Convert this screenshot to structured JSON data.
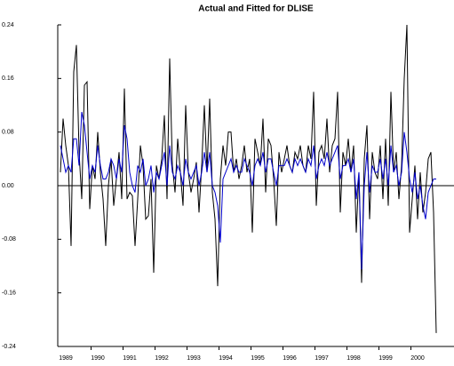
{
  "chart_data": {
    "type": "line",
    "title": "Actual and Fitted for DLISE",
    "categories": [
      null,
      null,
      "1989",
      null,
      null,
      null,
      null,
      null,
      null,
      null,
      null,
      null,
      null,
      null,
      "1990",
      null,
      null,
      null,
      null,
      null,
      null,
      null,
      null,
      null,
      null,
      null,
      "1991",
      null,
      null,
      null,
      null,
      null,
      null,
      null,
      null,
      null,
      null,
      null,
      "1992",
      null,
      null,
      null,
      null,
      null,
      null,
      null,
      null,
      null,
      null,
      null,
      "1993",
      null,
      null,
      null,
      null,
      null,
      null,
      null,
      null,
      null,
      null,
      null,
      "1994",
      null,
      null,
      null,
      null,
      null,
      null,
      null,
      null,
      null,
      null,
      null,
      "1995",
      null,
      null,
      null,
      null,
      null,
      null,
      null,
      null,
      null,
      null,
      null,
      "1996",
      null,
      null,
      null,
      null,
      null,
      null,
      null,
      null,
      null,
      null,
      null,
      "1997",
      null,
      null,
      null,
      null,
      null,
      null,
      null,
      null,
      null,
      null,
      null,
      "1998",
      null,
      null,
      null,
      null,
      null,
      null,
      null,
      null,
      null,
      null,
      null,
      "1999",
      null,
      null,
      null,
      null,
      null,
      null,
      null,
      null,
      null,
      null,
      null,
      "2000",
      null,
      null,
      null,
      null,
      null,
      null,
      null
    ],
    "series": [
      {
        "color": "#000000",
        "values": [
          0.02,
          0.1,
          0.06,
          0.03,
          -0.09,
          0.17,
          0.21,
          0.05,
          -0.02,
          0.15,
          0.155,
          -0.035,
          0.03,
          0.01,
          0.08,
          0.02,
          -0.02,
          -0.09,
          0.0,
          0.04,
          -0.03,
          0.01,
          0.05,
          -0.02,
          0.145,
          -0.02,
          -0.01,
          -0.015,
          -0.09,
          -0.02,
          0.06,
          0.03,
          -0.05,
          -0.045,
          0.01,
          -0.13,
          0.03,
          0.01,
          0.04,
          0.105,
          -0.02,
          0.19,
          0.03,
          -0.01,
          0.07,
          0.02,
          -0.03,
          0.12,
          0.02,
          -0.01,
          0.01,
          0.035,
          -0.04,
          0.03,
          0.12,
          0.02,
          0.13,
          -0.01,
          -0.05,
          -0.15,
          0.01,
          0.06,
          0.03,
          0.08,
          0.08,
          0.02,
          0.04,
          0.01,
          0.03,
          0.06,
          0.02,
          0.04,
          -0.07,
          0.07,
          0.05,
          0.03,
          0.1,
          -0.01,
          0.07,
          0.06,
          0.01,
          -0.06,
          0.05,
          0.02,
          0.04,
          0.06,
          0.03,
          0.02,
          0.05,
          0.04,
          0.06,
          0.03,
          0.02,
          0.06,
          0.04,
          0.14,
          -0.03,
          0.05,
          0.06,
          0.04,
          0.1,
          0.02,
          0.06,
          0.07,
          0.14,
          -0.04,
          0.05,
          0.03,
          0.07,
          0.02,
          0.06,
          -0.07,
          0.02,
          -0.145,
          0.04,
          0.09,
          -0.05,
          0.05,
          0.02,
          0.01,
          0.06,
          -0.02,
          0.07,
          -0.03,
          0.14,
          0.02,
          0.05,
          -0.02,
          0.03,
          0.16,
          0.24,
          -0.07,
          -0.02,
          0.03,
          -0.05,
          0.02,
          -0.04,
          -0.01,
          0.04,
          0.05,
          -0.04,
          -0.22
        ]
      },
      {
        "color": "#0000cc",
        "values": [
          0.06,
          0.04,
          0.02,
          0.03,
          0.02,
          0.07,
          0.07,
          0.03,
          0.11,
          0.09,
          0.05,
          0.01,
          0.03,
          0.02,
          0.06,
          0.03,
          0.01,
          0.01,
          0.02,
          0.04,
          0.03,
          0.01,
          0.04,
          0.02,
          0.09,
          0.07,
          0.02,
          0.0,
          -0.01,
          0.03,
          0.02,
          0.04,
          0.0,
          0.01,
          0.03,
          -0.01,
          0.02,
          0.01,
          0.03,
          0.05,
          0.0,
          0.06,
          0.02,
          0.01,
          0.03,
          0.02,
          0.0,
          0.04,
          0.02,
          0.01,
          0.02,
          0.03,
          0.0,
          0.02,
          0.05,
          0.02,
          0.05,
          0.0,
          -0.01,
          -0.03,
          -0.085,
          0.01,
          0.02,
          0.03,
          0.04,
          0.02,
          0.03,
          0.02,
          0.02,
          0.04,
          0.03,
          0.02,
          0.0,
          0.03,
          0.04,
          0.03,
          0.05,
          0.02,
          0.04,
          0.04,
          0.02,
          0.0,
          0.03,
          0.03,
          0.03,
          0.04,
          0.03,
          0.02,
          0.04,
          0.03,
          0.04,
          0.03,
          0.02,
          0.04,
          0.03,
          0.06,
          0.01,
          0.03,
          0.04,
          0.03,
          0.05,
          0.03,
          0.04,
          0.05,
          0.06,
          0.01,
          0.03,
          0.03,
          0.04,
          0.02,
          0.04,
          -0.02,
          0.02,
          -0.125,
          0.0,
          0.05,
          -0.01,
          0.03,
          0.02,
          0.02,
          0.04,
          0.01,
          0.04,
          0.0,
          0.06,
          0.02,
          0.03,
          0.0,
          0.02,
          0.08,
          0.05,
          0.01,
          -0.01,
          0.02,
          -0.02,
          0.0,
          -0.03,
          -0.05,
          -0.01,
          0.0,
          0.01,
          0.01
        ]
      }
    ],
    "ylim": [
      -0.24,
      0.24
    ],
    "yticks": [
      -0.24,
      -0.16,
      -0.08,
      {
        "value": 0,
        "label": "0.00"
      },
      0.08,
      0.16,
      0.24
    ],
    "zero_line": true,
    "grid": false
  }
}
